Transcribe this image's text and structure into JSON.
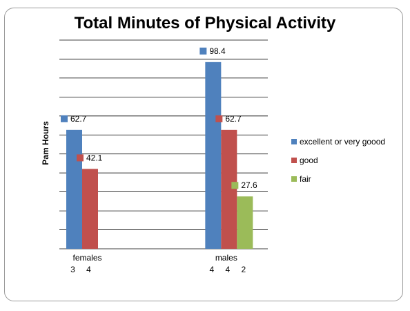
{
  "chart_data": {
    "type": "bar",
    "title": "Total Minutes of Physical Activity",
    "ylabel": "Pam Hours",
    "xlabel": "",
    "ylim": [
      0,
      110
    ],
    "grid": true,
    "legend_position": "right",
    "categories": [
      "females",
      "",
      "males"
    ],
    "category_sublabels": [
      [
        "3",
        "4"
      ],
      [],
      [
        "4",
        "4",
        "2"
      ]
    ],
    "series": [
      {
        "name": "excellent or very goood",
        "color": "#4f81bd",
        "values": [
          62.7,
          0,
          98.4
        ]
      },
      {
        "name": "good",
        "color": "#c0504d",
        "values": [
          42.1,
          0,
          62.7
        ]
      },
      {
        "name": "fair",
        "color": "#9bbb59",
        "values": [
          0,
          0,
          27.6
        ]
      }
    ],
    "data_labels": [
      {
        "series": 0,
        "category": 0,
        "text": "62.7"
      },
      {
        "series": 1,
        "category": 0,
        "text": "42.1"
      },
      {
        "series": 0,
        "category": 2,
        "text": "98.4"
      },
      {
        "series": 1,
        "category": 2,
        "text": "62.7"
      },
      {
        "series": 2,
        "category": 2,
        "text": "27.6"
      }
    ]
  }
}
